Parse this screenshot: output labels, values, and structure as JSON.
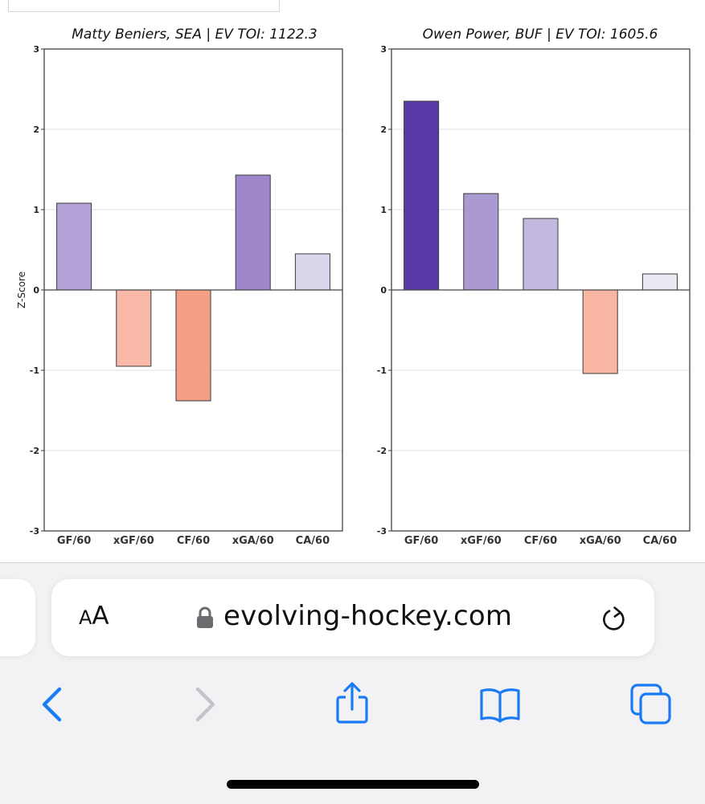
{
  "chart_data": [
    {
      "type": "bar",
      "title": "Matty Beniers, SEA  |  EV TOI: 1122.3",
      "ylabel": "Z-Score",
      "categories": [
        "GF/60",
        "xGF/60",
        "CF/60",
        "xGA/60",
        "CA/60"
      ],
      "values": [
        1.08,
        -0.95,
        -1.38,
        1.43,
        0.45
      ],
      "colors": [
        "#b3a2d7",
        "#f9b9a8",
        "#f59f86",
        "#9e87cb",
        "#dcd6ec"
      ],
      "ylim": [
        -3,
        3
      ],
      "yticks": [
        "-3",
        "-2",
        "-1",
        "0",
        "1",
        "2",
        "3"
      ],
      "grid": true
    },
    {
      "type": "bar",
      "title": "Owen Power, BUF  |  EV TOI: 1605.6",
      "ylabel": "",
      "categories": [
        "GF/60",
        "xGF/60",
        "CF/60",
        "xGA/60",
        "CA/60"
      ],
      "values": [
        2.35,
        1.2,
        0.89,
        -1.04,
        0.2
      ],
      "colors": [
        "#5939a6",
        "#ab99d2",
        "#c5b8df",
        "#f9b6a2",
        "#ebe8f4"
      ],
      "ylim": [
        -3,
        3
      ],
      "yticks": [
        "-3",
        "-2",
        "-1",
        "0",
        "1",
        "2",
        "3"
      ],
      "grid": true
    }
  ],
  "browser": {
    "text_size_label_small": "A",
    "text_size_label_big": "A",
    "url": "evolving-hockey.com"
  },
  "icons": {
    "lock": "lock-icon",
    "reload": "reload-icon",
    "back": "chevron-left-icon",
    "forward": "chevron-right-icon",
    "share": "share-icon",
    "bookmarks": "book-icon",
    "tabs": "tabs-icon"
  },
  "colors": {
    "accent": "#1a7cf5",
    "disabled": "#c4c4c8",
    "chrome_background": "#f2f2f4"
  }
}
